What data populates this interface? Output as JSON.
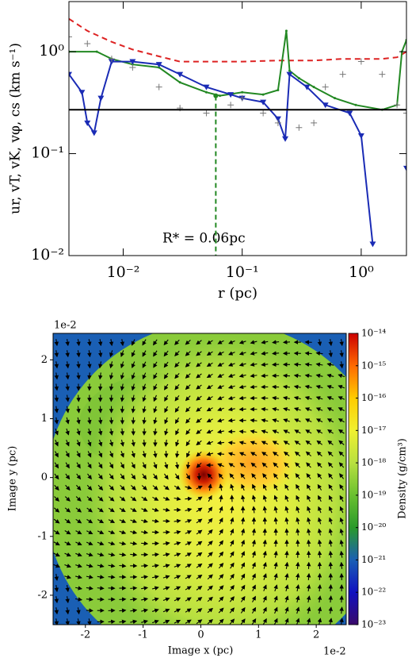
{
  "chart_data": [
    {
      "type": "line",
      "log_x": true,
      "log_y": true,
      "xlabel": "r (pc)",
      "ylabel": "ur, vT, vK, vφ, cs (km s⁻¹)",
      "xlim": [
        0.0035,
        2.4
      ],
      "ylim": [
        0.01,
        3.1
      ],
      "xticks": [
        {
          "value": 0.01,
          "label": "10⁻²"
        },
        {
          "value": 0.1,
          "label": "10⁻¹"
        },
        {
          "value": 1,
          "label": "10⁰"
        }
      ],
      "yticks": [
        {
          "value": 0.01,
          "label": "10⁻²"
        },
        {
          "value": 0.1,
          "label": "10⁻¹"
        },
        {
          "value": 1,
          "label": "10⁰"
        }
      ],
      "vline": {
        "x": 0.06,
        "top": 0.37,
        "color": "#228822",
        "label": "R* = 0.06pc"
      },
      "series": [
        {
          "color": "#dd2222",
          "style": "dashed",
          "marker": "none",
          "x": [
            0.0035,
            0.005,
            0.008,
            0.012,
            0.02,
            0.03,
            0.05,
            0.1,
            0.2,
            0.4,
            0.7,
            1.0,
            1.5,
            2.0,
            2.4
          ],
          "values": [
            2.1,
            1.6,
            1.25,
            1.05,
            0.9,
            0.8,
            0.8,
            0.8,
            0.82,
            0.82,
            0.85,
            0.85,
            0.85,
            0.88,
            1.0
          ]
        },
        {
          "color": "#228822",
          "style": "solid",
          "marker": "dot",
          "x": [
            0.0035,
            0.006,
            0.008,
            0.012,
            0.02,
            0.03,
            0.05,
            0.065,
            0.1,
            0.15,
            0.2,
            0.235,
            0.25,
            0.3,
            0.4,
            0.6,
            0.9,
            1.5,
            2.0,
            2.2,
            2.4
          ],
          "values": [
            1.0,
            1.0,
            0.85,
            0.75,
            0.7,
            0.5,
            0.4,
            0.37,
            0.4,
            0.38,
            0.42,
            1.6,
            0.65,
            0.55,
            0.45,
            0.35,
            0.3,
            0.27,
            0.3,
            1.0,
            1.3
          ]
        },
        {
          "color": "#1a2bb5",
          "style": "solid",
          "marker": "triangle",
          "x": [
            0.0035,
            0.0045,
            0.005,
            0.0057,
            0.0065,
            0.008,
            0.012,
            0.02,
            0.03,
            0.05,
            0.08,
            0.1,
            0.15,
            0.2,
            0.23,
            0.25,
            0.35,
            0.5,
            0.8,
            1.0,
            1.25,
            null,
            2.4
          ],
          "values": [
            0.6,
            0.4,
            0.2,
            0.16,
            0.35,
            0.8,
            0.8,
            0.75,
            0.6,
            0.45,
            0.38,
            0.35,
            0.32,
            0.22,
            0.14,
            0.6,
            0.45,
            0.3,
            0.25,
            0.15,
            0.013,
            null,
            0.072
          ]
        },
        {
          "color": "#777777",
          "style": "none",
          "marker": "plus",
          "x": [
            0.0035,
            0.005,
            0.008,
            0.012,
            0.02,
            0.03,
            0.05,
            0.08,
            0.1,
            0.15,
            0.2,
            0.3,
            0.4,
            0.5,
            0.7,
            1.0,
            1.5,
            2.0,
            2.4
          ],
          "values": [
            1.4,
            1.2,
            0.85,
            0.7,
            0.45,
            0.28,
            0.25,
            0.3,
            0.35,
            0.25,
            0.2,
            0.18,
            0.2,
            0.45,
            0.6,
            0.8,
            0.6,
            0.3,
            0.25
          ]
        },
        {
          "color": "#000000",
          "style": "solid",
          "marker": "none",
          "x": [
            0.0035,
            2.4
          ],
          "values": [
            0.27,
            0.27
          ]
        }
      ]
    },
    {
      "type": "density-map",
      "xlabel": "Image x (pc)",
      "ylabel": "Image y (pc)",
      "x_offset_label": "1e-2",
      "y_offset_label": "1e-2",
      "xlim": [
        -2.56,
        2.52
      ],
      "ylim": [
        -2.5,
        2.45
      ],
      "xticks": [
        -2,
        -1,
        0,
        1,
        2
      ],
      "yticks": [
        -2,
        -1,
        0,
        1,
        2
      ],
      "colorbar": {
        "label": "Density (g/cm³)",
        "log": true,
        "lim": [
          1e-23,
          1e-14
        ],
        "colors": [
          "#3a0a6a",
          "#1010c0",
          "#1a5fb4",
          "#2a9a2a",
          "#6ac030",
          "#b8e040",
          "#f0f030",
          "#ffcc00",
          "#ff6a00",
          "#cc0000"
        ],
        "ticks": [
          {
            "value": 1e-14,
            "label": "10⁻¹⁴"
          },
          {
            "value": 1e-15,
            "label": "10⁻¹⁵"
          },
          {
            "value": 1e-16,
            "label": "10⁻¹⁶"
          },
          {
            "value": 1e-17,
            "label": "10⁻¹⁷"
          },
          {
            "value": 1e-18,
            "label": "10⁻¹⁸"
          },
          {
            "value": 1e-19,
            "label": "10⁻¹⁹"
          },
          {
            "value": 1e-20,
            "label": "10⁻²⁰"
          },
          {
            "value": 1e-21,
            "label": "10⁻²¹"
          },
          {
            "value": 1e-22,
            "label": "10⁻²²"
          },
          {
            "value": 1e-23,
            "label": "10⁻²³"
          }
        ]
      }
    }
  ]
}
